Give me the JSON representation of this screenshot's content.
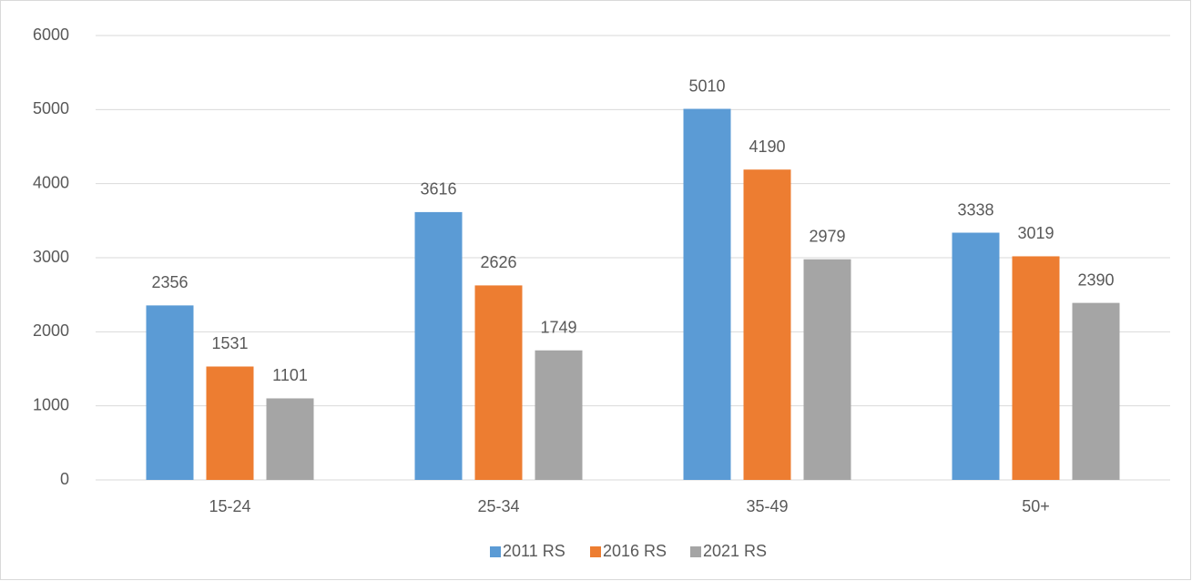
{
  "chart_data": {
    "type": "bar",
    "categories": [
      "15-24",
      "25-34",
      "35-49",
      "50+"
    ],
    "series": [
      {
        "name": "2011 RS",
        "color": "#5b9bd5",
        "values": [
          2356,
          3616,
          5010,
          3338
        ]
      },
      {
        "name": "2016 RS",
        "color": "#ed7d31",
        "values": [
          1531,
          2626,
          4190,
          3019
        ]
      },
      {
        "name": "2021 RS",
        "color": "#a5a5a5",
        "values": [
          1101,
          1749,
          2979,
          2390
        ]
      }
    ],
    "ylim": [
      0,
      6000
    ],
    "yticks": [
      0,
      1000,
      2000,
      3000,
      4000,
      5000,
      6000
    ],
    "grid": true,
    "legend": "bottom",
    "data_labels": true
  }
}
